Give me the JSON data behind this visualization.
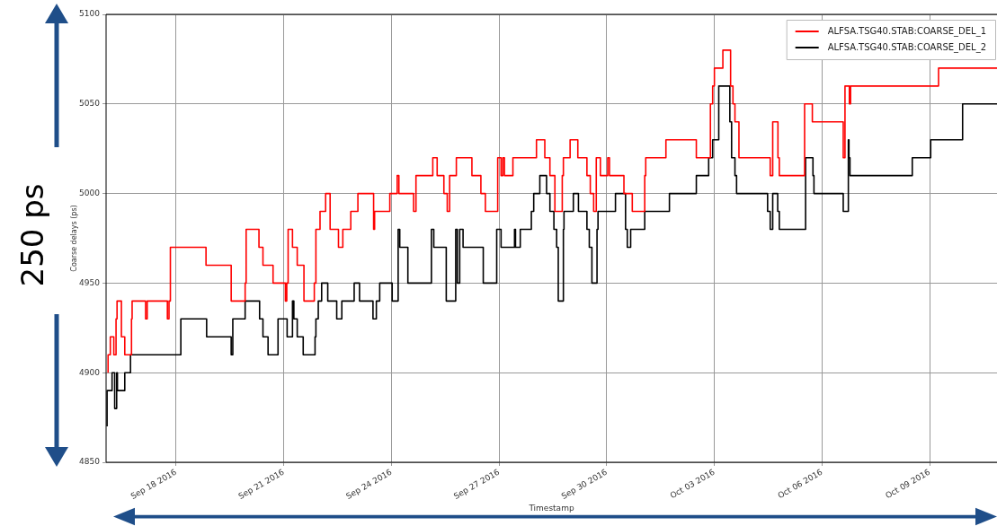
{
  "chart_data": {
    "type": "step",
    "xlabel": "Timestamp",
    "ylabel": "Coarse delays (ps)",
    "annotations": [
      "250 ps"
    ],
    "xlim": [
      "2016-09-16T01:10",
      "2016-10-10T21:00"
    ],
    "xticks": [
      {
        "value": "2016-09-18",
        "label": "Sep 18 2016"
      },
      {
        "value": "2016-09-21",
        "label": "Sep 21 2016"
      },
      {
        "value": "2016-09-24",
        "label": "Sep 24 2016"
      },
      {
        "value": "2016-09-27",
        "label": "Sep 27 2016"
      },
      {
        "value": "2016-09-30",
        "label": "Sep 30 2016"
      },
      {
        "value": "2016-10-03",
        "label": "Oct 03 2016"
      },
      {
        "value": "2016-10-06",
        "label": "Oct 06 2016"
      },
      {
        "value": "2016-10-09",
        "label": "Oct 09 2016"
      }
    ],
    "ylim": [
      4850,
      5100
    ],
    "yticks": [
      4850,
      4900,
      4950,
      5000,
      5050,
      5100
    ],
    "grid": true,
    "legend": "top right",
    "marker": "none",
    "line_style": "solid",
    "series": [
      {
        "name": "ALFSA.TSG40.STAB:COARSE_DEL_1",
        "color": "#ff0000",
        "x": [
          "2016-09-16T02:30",
          "2016-09-16T04:00",
          "2016-09-16T06:20",
          "2016-09-16T07:50",
          "2016-09-16T08:30",
          "2016-09-16T11:25",
          "2016-09-16T13:40",
          "2016-09-16T18:10",
          "2016-09-16T18:35",
          "2016-09-17T03:35",
          "2016-09-17T04:40",
          "2016-09-17T18:10",
          "2016-09-17T19:15",
          "2016-09-17T20:10",
          "2016-09-18T20:00",
          "2016-09-19T12:50",
          "2016-09-19T22:10",
          "2016-09-19T22:50",
          "2016-09-20T07:25",
          "2016-09-20T10:05",
          "2016-09-20T16:50",
          "2016-09-21T01:05",
          "2016-09-21T02:00",
          "2016-09-21T02:55",
          "2016-09-21T05:50",
          "2016-09-21T09:00",
          "2016-09-21T13:30",
          "2016-09-21T20:25",
          "2016-09-21T21:30",
          "2016-09-22T00:15",
          "2016-09-22T04:00",
          "2016-09-22T07:00",
          "2016-09-22T12:35",
          "2016-09-22T15:30",
          "2016-09-22T20:50",
          "2016-09-23T01:35",
          "2016-09-23T12:05",
          "2016-09-23T12:45",
          "2016-09-23T22:55",
          "2016-09-24T03:50",
          "2016-09-24T05:00",
          "2016-09-24T14:50",
          "2016-09-24T16:25",
          "2016-09-25T03:40",
          "2016-09-25T06:35",
          "2016-09-25T11:05",
          "2016-09-25T13:20",
          "2016-09-25T14:55",
          "2016-09-25T19:25",
          "2016-09-26T05:50",
          "2016-09-26T11:50",
          "2016-09-26T14:50",
          "2016-09-26T23:05",
          "2016-09-27T01:20",
          "2016-09-27T02:30",
          "2016-09-27T03:35",
          "2016-09-27T09:15",
          "2016-09-28T01:00",
          "2016-09-28T06:35",
          "2016-09-28T10:00",
          "2016-09-28T13:20",
          "2016-09-28T18:15",
          "2016-09-28T19:00",
          "2016-09-28T23:30",
          "2016-09-29T04:40",
          "2016-09-29T10:45",
          "2016-09-29T13:00",
          "2016-09-29T15:15",
          "2016-09-29T17:00",
          "2016-09-29T19:45",
          "2016-09-30T00:40",
          "2016-09-30T01:50",
          "2016-09-30T11:30",
          "2016-09-30T17:05",
          "2016-10-01T01:25",
          "2016-10-01T02:05",
          "2016-10-01T15:35",
          "2016-10-02T11:55",
          "2016-10-02T21:20",
          "2016-10-02T22:50",
          "2016-10-03T00:00",
          "2016-10-03T05:40",
          "2016-10-03T10:50",
          "2016-10-03T12:25",
          "2016-10-03T13:45",
          "2016-10-03T16:25",
          "2016-10-04T13:20",
          "2016-10-04T15:00",
          "2016-10-04T18:30",
          "2016-10-04T19:25",
          "2016-10-05T12:20",
          "2016-10-05T17:30",
          "2016-10-06T14:10",
          "2016-10-06T15:20",
          "2016-10-06T18:15",
          "2016-10-06T19:05",
          "2016-10-09T05:55",
          "2016-10-10T01:00",
          "2016-10-10T21:00"
        ],
        "values": [
          4900,
          4910,
          4920,
          4910,
          4930,
          4940,
          4920,
          4910,
          4930,
          4940,
          4930,
          4940,
          4930,
          4940,
          4970,
          4960,
          4940,
          4950,
          4980,
          4970,
          4960,
          4950,
          4940,
          4950,
          4980,
          4970,
          4960,
          4940,
          4950,
          4980,
          4990,
          5000,
          4980,
          4970,
          4980,
          4990,
          5000,
          4980,
          4990,
          5000,
          5010,
          5000,
          4990,
          5010,
          5020,
          5010,
          5000,
          4990,
          5010,
          5020,
          5010,
          5000,
          4990,
          5020,
          5010,
          5020,
          5010,
          5020,
          5030,
          5020,
          5010,
          4990,
          5010,
          5020,
          5030,
          5020,
          5010,
          5000,
          4990,
          5020,
          5010,
          5020,
          5010,
          5000,
          4990,
          5010,
          5020,
          5030,
          5020,
          5050,
          5060,
          5070,
          5080,
          5060,
          5050,
          5040,
          5020,
          5010,
          5040,
          5020,
          5010,
          5050,
          5040,
          5020,
          5060,
          5050,
          5060,
          5070,
          5070
        ]
      },
      {
        "name": "ALFSA.TSG40.STAB:COARSE_DEL_2",
        "color": "#000000",
        "x": [
          "2016-09-16T01:50",
          "2016-09-16T05:10",
          "2016-09-16T06:55",
          "2016-09-16T08:15",
          "2016-09-16T08:45",
          "2016-09-16T13:40",
          "2016-09-16T17:30",
          "2016-09-18T03:10",
          "2016-09-18T20:25",
          "2016-09-19T12:50",
          "2016-09-19T13:55",
          "2016-09-19T22:10",
          "2016-09-20T07:50",
          "2016-09-20T10:05",
          "2016-09-20T13:30",
          "2016-09-20T20:10",
          "2016-09-21T02:15",
          "2016-09-21T05:50",
          "2016-09-21T06:45",
          "2016-09-21T09:00",
          "2016-09-21T13:00",
          "2016-09-21T20:55",
          "2016-09-21T21:30",
          "2016-09-21T23:05",
          "2016-09-22T01:20",
          "2016-09-22T05:25",
          "2016-09-22T11:25",
          "2016-09-22T14:50",
          "2016-09-22T23:05",
          "2016-09-23T02:40",
          "2016-09-23T11:40",
          "2016-09-23T13:55",
          "2016-09-23T16:10",
          "2016-09-24T00:30",
          "2016-09-24T04:30",
          "2016-09-24T05:35",
          "2016-09-24T11:00",
          "2016-09-25T02:45",
          "2016-09-25T04:20",
          "2016-09-25T12:40",
          "2016-09-25T19:00",
          "2016-09-25T20:05",
          "2016-09-25T21:40",
          "2016-09-25T23:55",
          "2016-09-26T13:25",
          "2016-09-26T22:25",
          "2016-09-27T01:20",
          "2016-09-27T10:20",
          "2016-09-27T11:00",
          "2016-09-27T14:10",
          "2016-09-27T21:35",
          "2016-09-27T23:10",
          "2016-09-28T03:15",
          "2016-09-28T07:45",
          "2016-09-28T10:00",
          "2016-09-28T12:40",
          "2016-09-28T14:30",
          "2016-09-28T15:35",
          "2016-09-28T19:00",
          "2016-09-28T19:25",
          "2016-09-29T01:40",
          "2016-09-29T05:05",
          "2016-09-29T10:45",
          "2016-09-29T12:20",
          "2016-09-29T14:05",
          "2016-09-29T17:30",
          "2016-09-29T18:10",
          "2016-09-30T05:50",
          "2016-09-30T12:35",
          "2016-09-30T13:45",
          "2016-09-30T16:00",
          "2016-10-01T01:25",
          "2016-10-01T17:55",
          "2016-10-02T11:55",
          "2016-10-02T20:10",
          "2016-10-02T22:50",
          "2016-10-03T02:55",
          "2016-10-03T10:20",
          "2016-10-03T11:30",
          "2016-10-03T13:45",
          "2016-10-03T14:50",
          "2016-10-04T11:35",
          "2016-10-04T13:20",
          "2016-10-04T15:00",
          "2016-10-04T18:20",
          "2016-10-04T19:25",
          "2016-10-05T13:00",
          "2016-10-05T17:55",
          "2016-10-05T18:35",
          "2016-10-06T14:10",
          "2016-10-06T17:35",
          "2016-10-06T18:00",
          "2016-10-06T18:40",
          "2016-10-08T12:20",
          "2016-10-09T00:40",
          "2016-10-09T22:00",
          "2016-10-10T20:35",
          "2016-10-10T21:00"
        ],
        "values": [
          4870,
          4890,
          4900,
          4880,
          4900,
          4890,
          4900,
          4910,
          4930,
          4920,
          4910,
          4930,
          4940,
          4930,
          4920,
          4910,
          4930,
          4920,
          4940,
          4930,
          4920,
          4910,
          4920,
          4930,
          4940,
          4950,
          4940,
          4930,
          4940,
          4950,
          4940,
          4930,
          4940,
          4950,
          4940,
          4980,
          4970,
          4950,
          4980,
          4970,
          4940,
          4980,
          4950,
          4980,
          4970,
          4950,
          4980,
          4970,
          4980,
          4970,
          4980,
          4990,
          5000,
          5010,
          5000,
          4990,
          4980,
          4970,
          4940,
          4980,
          4990,
          5000,
          4990,
          4980,
          4970,
          4950,
          4980,
          4990,
          5000,
          4980,
          4970,
          4980,
          4990,
          5000,
          5010,
          5020,
          5030,
          5060,
          5040,
          5020,
          5010,
          5000,
          4990,
          4980,
          5000,
          4990,
          4980,
          5020,
          5010,
          5000,
          4990,
          5030,
          5020,
          5010,
          5020,
          5030,
          5050,
          5050
        ]
      }
    ]
  }
}
